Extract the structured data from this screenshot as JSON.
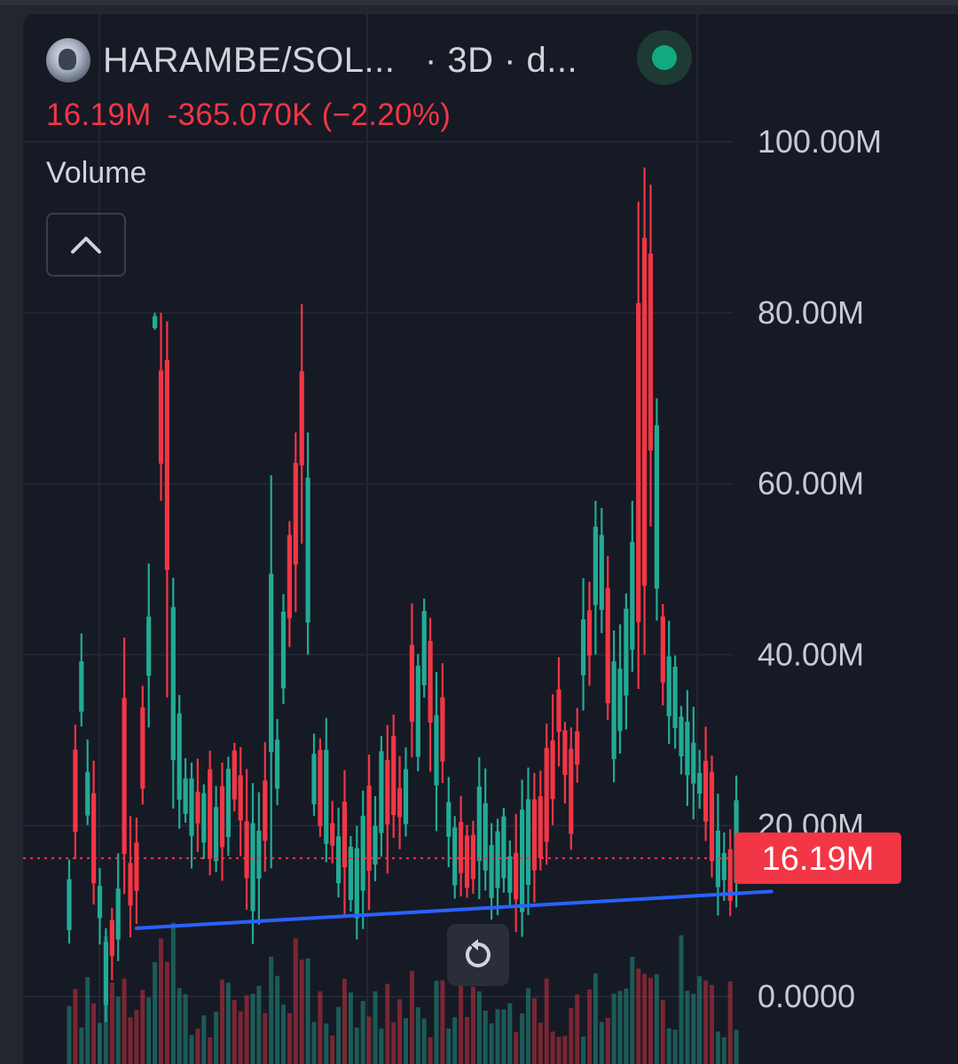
{
  "header": {
    "symbol": "HARAMBE/SOL...",
    "interval": "· 3D · d...",
    "last_value": "16.19M",
    "change": "-365.070K (−2.20%)",
    "status": "market-open-green-dot"
  },
  "indicator": {
    "name": "Volume",
    "collapse_icon": "chevron-up-icon",
    "reset_icon": "reset-rotate-icon"
  },
  "colors": {
    "up": "#22ab94",
    "down": "#f23645",
    "trendline": "#2962ff",
    "background": "#161a25"
  },
  "chart_data": {
    "type": "bar",
    "series_type": "volume-with-high-low-range",
    "y_axis": {
      "ticks": [
        "100.00M",
        "80.00M",
        "60.00M",
        "40.00M",
        "20.00M",
        "0.0000"
      ],
      "tick_values": [
        100,
        80,
        60,
        40,
        20,
        0
      ],
      "unit": "M",
      "ylim": [
        -7.5,
        105
      ]
    },
    "last_value_label": "16.19M",
    "last_value": 16.19,
    "anchors": [
      [
        0,
        12
      ],
      [
        2,
        35
      ],
      [
        4,
        16
      ],
      [
        6,
        5
      ],
      [
        9,
        10
      ],
      [
        11,
        14
      ],
      [
        14,
        52
      ],
      [
        16,
        30
      ],
      [
        18,
        27
      ],
      [
        21,
        20
      ],
      [
        24,
        18
      ],
      [
        27,
        25
      ],
      [
        30,
        14
      ],
      [
        33,
        20
      ],
      [
        35,
        38
      ],
      [
        37,
        50
      ],
      [
        40,
        27
      ],
      [
        44,
        16
      ],
      [
        48,
        14
      ],
      [
        51,
        22
      ],
      [
        55,
        22
      ],
      [
        58,
        38
      ],
      [
        61,
        22
      ],
      [
        64,
        16
      ],
      [
        67,
        17
      ],
      [
        70,
        16
      ],
      [
        74,
        14
      ],
      [
        77,
        20
      ],
      [
        80,
        30
      ],
      [
        82,
        23
      ],
      [
        84,
        38
      ],
      [
        87,
        47
      ],
      [
        89,
        33
      ],
      [
        91,
        38
      ],
      [
        93,
        48
      ],
      [
        95,
        75
      ],
      [
        97,
        40
      ],
      [
        100,
        32
      ],
      [
        103,
        25
      ],
      [
        105,
        18
      ],
      [
        107,
        15
      ],
      [
        109,
        16
      ]
    ],
    "spikes": {
      "6": [
        -3,
        8
      ],
      "9": [
        12,
        42
      ],
      "14": [
        78,
        80
      ],
      "15": [
        58,
        80
      ],
      "16": [
        35,
        79
      ],
      "17": [
        22,
        49
      ],
      "33": [
        15,
        61
      ],
      "37": [
        45,
        66
      ],
      "38": [
        53,
        81
      ],
      "39": [
        40,
        66
      ],
      "56": [
        28,
        46
      ],
      "61": [
        25,
        39
      ],
      "86": [
        40,
        58
      ],
      "92": [
        38,
        58
      ],
      "93": [
        36,
        93
      ],
      "94": [
        40,
        97
      ],
      "95": [
        55,
        95
      ],
      "96": [
        44,
        70
      ],
      "100": [
        26,
        34
      ]
    },
    "trendline": {
      "from": [
        11,
        8
      ],
      "to": [
        113,
        12.3
      ]
    },
    "volume_bars_max": 2
  }
}
